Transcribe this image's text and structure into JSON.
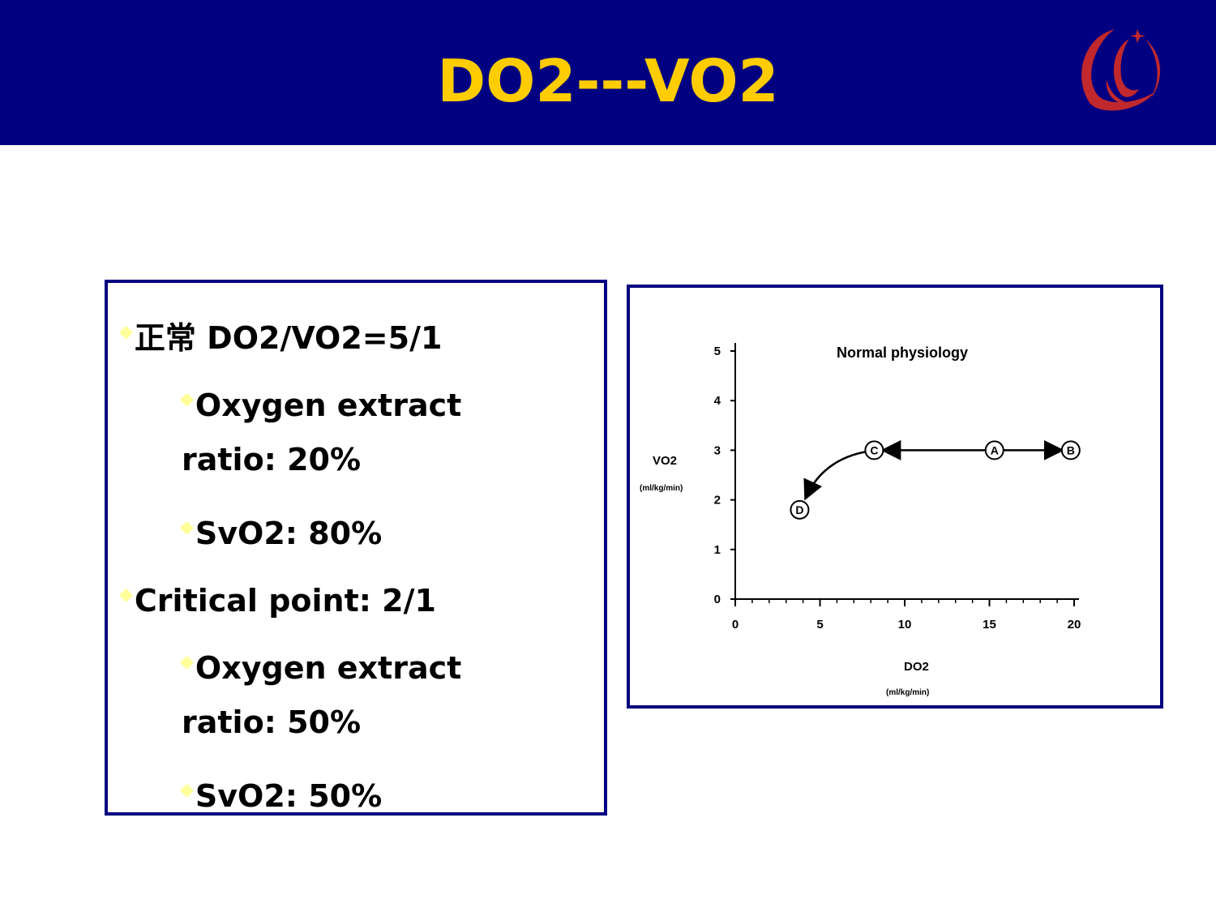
{
  "slide": {
    "title": "DO2---VO2",
    "colors": {
      "header_bg": "#000080",
      "title": "#FFCC00",
      "bullet_marker": "#FFFF99",
      "logo": "#C0282D",
      "border": "#000080"
    }
  },
  "bullets": [
    {
      "level": 1,
      "text": "正常 DO2/VO2=5/1"
    },
    {
      "level": 2,
      "lines": [
        "Oxygen extract",
        "ratio: 20%"
      ]
    },
    {
      "level": 2,
      "text": "SvO2: 80%"
    },
    {
      "level": 1,
      "text": "Critical point: 2/1"
    },
    {
      "level": 2,
      "lines": [
        "Oxygen extract",
        "ratio: 50%"
      ]
    },
    {
      "level": 2,
      "text": "SvO2: 50%"
    }
  ],
  "chart_data": {
    "type": "line",
    "title": "Normal physiology",
    "xlabel": "DO2",
    "xunit": "(ml/kg/min)",
    "ylabel": "VO2",
    "yunit": "(ml/kg/min)",
    "xlim": [
      0,
      20
    ],
    "ylim": [
      0,
      5
    ],
    "xticks": [
      0,
      5,
      10,
      15,
      20
    ],
    "yticks": [
      0,
      1,
      2,
      3,
      4,
      5
    ],
    "points": [
      {
        "label": "D",
        "x": 3.8,
        "y": 1.8
      },
      {
        "label": "C",
        "x": 8.2,
        "y": 3.0
      },
      {
        "label": "A",
        "x": 15.3,
        "y": 3.0
      },
      {
        "label": "B",
        "x": 19.8,
        "y": 3.0
      }
    ],
    "legend": "none",
    "grid": false
  }
}
